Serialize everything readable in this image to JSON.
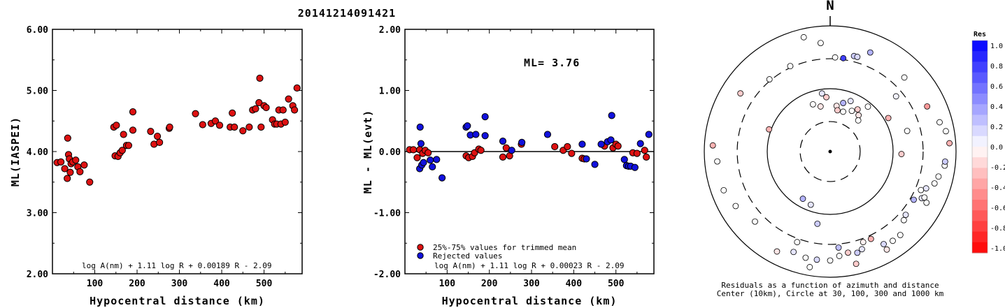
{
  "title": "20141214091421",
  "chart_data": [
    {
      "type": "scatter",
      "ylabel": "ML(IASPEI)",
      "xlabel": "Hypocentral distance (km)",
      "xlim": [
        0,
        590
      ],
      "ylim": [
        2.0,
        6.0
      ],
      "xticks": [
        100,
        200,
        300,
        400,
        500
      ],
      "yticks": [
        "2.00",
        "3.00",
        "4.00",
        "5.00",
        "6.00"
      ],
      "formula": "log A(nm) + 1.11 log R + 0.00189 R - 2.09",
      "series": [
        {
          "color": "#dd1111",
          "points": [
            [
              11,
              3.82
            ],
            [
              20,
              3.83
            ],
            [
              29,
              3.72
            ],
            [
              35,
              3.56
            ],
            [
              36,
              4.22
            ],
            [
              38,
              3.95
            ],
            [
              40,
              3.88
            ],
            [
              42,
              3.66
            ],
            [
              44,
              3.8
            ],
            [
              48,
              3.83
            ],
            [
              55,
              3.86
            ],
            [
              60,
              3.75
            ],
            [
              65,
              3.67
            ],
            [
              75,
              3.78
            ],
            [
              88,
              3.5
            ],
            [
              145,
              4.4
            ],
            [
              148,
              3.93
            ],
            [
              151,
              4.43
            ],
            [
              155,
              3.92
            ],
            [
              160,
              3.98
            ],
            [
              165,
              4.02
            ],
            [
              168,
              4.28
            ],
            [
              175,
              4.1
            ],
            [
              180,
              4.1
            ],
            [
              190,
              4.35
            ],
            [
              190,
              4.65
            ],
            [
              232,
              4.33
            ],
            [
              240,
              4.12
            ],
            [
              248,
              4.25
            ],
            [
              253,
              4.15
            ],
            [
              276,
              4.38
            ],
            [
              277,
              4.4
            ],
            [
              338,
              4.62
            ],
            [
              355,
              4.44
            ],
            [
              375,
              4.46
            ],
            [
              385,
              4.5
            ],
            [
              395,
              4.43
            ],
            [
              420,
              4.4
            ],
            [
              425,
              4.63
            ],
            [
              430,
              4.4
            ],
            [
              450,
              4.34
            ],
            [
              465,
              4.4
            ],
            [
              473,
              4.68
            ],
            [
              480,
              4.7
            ],
            [
              488,
              4.8
            ],
            [
              490,
              5.2
            ],
            [
              493,
              4.4
            ],
            [
              500,
              4.75
            ],
            [
              505,
              4.72
            ],
            [
              520,
              4.52
            ],
            [
              525,
              4.45
            ],
            [
              530,
              4.45
            ],
            [
              535,
              4.68
            ],
            [
              540,
              4.45
            ],
            [
              545,
              4.68
            ],
            [
              550,
              4.48
            ],
            [
              558,
              4.86
            ],
            [
              568,
              4.75
            ],
            [
              572,
              4.68
            ],
            [
              578,
              5.04
            ]
          ]
        }
      ]
    },
    {
      "type": "scatter",
      "ylabel": "ML - ML(evt)",
      "xlabel": "Hypocentral distance (km)",
      "xlim": [
        0,
        590
      ],
      "ylim": [
        -2.0,
        2.0
      ],
      "xticks": [
        100,
        200,
        300,
        400,
        500
      ],
      "yticks": [
        "-2.00",
        "-1.00",
        "0.00",
        "1.00",
        "2.00"
      ],
      "annotation": "ML= 3.76",
      "legend": [
        "25%-75% values for trimmed mean",
        "Rejected values"
      ],
      "formula": "log A(nm) + 1.11 log R + 0.00023 R - 2.09",
      "series": [
        {
          "name": "25%-75% values for trimmed mean",
          "color": "#dd1111",
          "points": [
            [
              11,
              0.03
            ],
            [
              20,
              0.03
            ],
            [
              29,
              -0.1
            ],
            [
              35,
              0.03
            ],
            [
              42,
              -0.03
            ],
            [
              48,
              0.02
            ],
            [
              55,
              -0.02
            ],
            [
              145,
              -0.07
            ],
            [
              151,
              -0.1
            ],
            [
              160,
              -0.08
            ],
            [
              165,
              -0.02
            ],
            [
              175,
              0.04
            ],
            [
              180,
              0.02
            ],
            [
              232,
              -0.09
            ],
            [
              240,
              0.06
            ],
            [
              248,
              -0.07
            ],
            [
              276,
              0.12
            ],
            [
              355,
              0.08
            ],
            [
              375,
              0.02
            ],
            [
              385,
              0.08
            ],
            [
              395,
              -0.03
            ],
            [
              420,
              -0.11
            ],
            [
              425,
              -0.12
            ],
            [
              473,
              0.09
            ],
            [
              493,
              0.06
            ],
            [
              500,
              0.12
            ],
            [
              505,
              0.09
            ],
            [
              540,
              -0.02
            ],
            [
              550,
              -0.03
            ],
            [
              568,
              0.02
            ],
            [
              572,
              -0.09
            ]
          ]
        },
        {
          "name": "Rejected values",
          "color": "#1111dd",
          "points": [
            [
              35,
              -0.28
            ],
            [
              36,
              0.4
            ],
            [
              38,
              0.13
            ],
            [
              40,
              -0.22
            ],
            [
              44,
              -0.18
            ],
            [
              60,
              -0.14
            ],
            [
              65,
              -0.25
            ],
            [
              75,
              -0.13
            ],
            [
              88,
              -0.43
            ],
            [
              145,
              0.4
            ],
            [
              148,
              0.42
            ],
            [
              155,
              0.27
            ],
            [
              168,
              0.28
            ],
            [
              190,
              0.57
            ],
            [
              190,
              0.26
            ],
            [
              232,
              0.17
            ],
            [
              253,
              0.02
            ],
            [
              277,
              0.15
            ],
            [
              338,
              0.28
            ],
            [
              420,
              0.12
            ],
            [
              430,
              -0.12
            ],
            [
              450,
              -0.21
            ],
            [
              465,
              0.12
            ],
            [
              480,
              0.16
            ],
            [
              488,
              0.19
            ],
            [
              490,
              0.59
            ],
            [
              520,
              -0.13
            ],
            [
              525,
              -0.23
            ],
            [
              530,
              -0.24
            ],
            [
              535,
              -0.24
            ],
            [
              545,
              -0.26
            ],
            [
              558,
              0.13
            ],
            [
              578,
              0.28
            ]
          ]
        }
      ]
    },
    {
      "type": "scatter",
      "north_label": "N",
      "caption_line1": "Residuals as a function of azimuth and distance",
      "caption_line2": "Center (10km), Circle at 30, 100, 300 and 1000 km",
      "colorbar_title": "Res",
      "colorbar_ticks": [
        "1.0",
        "0.8",
        "0.6",
        "0.4",
        "0.2",
        "0.0",
        "-0.2",
        "-0.4",
        "-0.6",
        "-0.8",
        "-1.0"
      ],
      "rings_km": [
        30,
        100,
        300,
        1000
      ],
      "stations": [
        [
          1.2,
          340,
          0.0
        ],
        [
          1.1,
          348,
          -0.1
        ],
        [
          1.3,
          356,
          -0.2
        ],
        [
          1.4,
          352,
          0.1
        ],
        [
          1.1,
          8,
          -0.1
        ],
        [
          1.0,
          10,
          -0.2
        ],
        [
          1.2,
          15,
          0.3
        ],
        [
          1.0,
          18,
          0.0
        ],
        [
          1.3,
          22,
          0.1
        ],
        [
          1.1,
          28,
          0.0
        ],
        [
          1.2,
          33,
          -0.2
        ],
        [
          1.1,
          38,
          -0.1
        ],
        [
          1.0,
          42,
          0.0
        ],
        [
          1.4,
          40,
          0.0
        ],
        [
          1.6,
          60,
          -0.3
        ],
        [
          1.9,
          75,
          0.0
        ],
        [
          1.7,
          92,
          -0.2
        ],
        [
          2.05,
          50,
          0.05
        ],
        [
          2.25,
          8,
          0.75
        ],
        [
          2.25,
          3,
          0.0
        ],
        [
          2.35,
          14,
          0.2
        ],
        [
          2.35,
          16,
          0.15
        ],
        [
          2.6,
          355,
          0.0
        ],
        [
          2.8,
          347,
          0.0
        ],
        [
          2.55,
          22,
          0.3
        ],
        [
          2.5,
          45,
          0.0
        ],
        [
          2.55,
          65,
          -0.4
        ],
        [
          2.7,
          75,
          0.0
        ],
        [
          2.8,
          80,
          0.0
        ],
        [
          2.85,
          86,
          -0.3
        ],
        [
          2.3,
          155,
          -0.3
        ],
        [
          2.5,
          165,
          0.2
        ],
        [
          2.45,
          170,
          -0.2
        ],
        [
          2.5,
          175,
          0.0
        ],
        [
          2.6,
          180,
          0.0
        ],
        [
          2.7,
          150,
          -0.1
        ],
        [
          2.4,
          133,
          0.0
        ],
        [
          2.3,
          120,
          0.3
        ],
        [
          2.35,
          113,
          0.0
        ],
        [
          2.45,
          117,
          0.1
        ],
        [
          2.5,
          116,
          0.0
        ],
        [
          2.45,
          111,
          0.1
        ],
        [
          2.6,
          107,
          0.0
        ],
        [
          2.65,
          103,
          0.0
        ],
        [
          2.75,
          97,
          0.0
        ],
        [
          2.75,
          95,
          0.2
        ],
        [
          2.6,
          145,
          0.0
        ],
        [
          2.55,
          150,
          0.15
        ],
        [
          2.3,
          175,
          0.25
        ],
        [
          2.6,
          140,
          0.0
        ],
        [
          2.3,
          200,
          0.0
        ],
        [
          2.55,
          200,
          0.1
        ],
        [
          2.8,
          190,
          0.0
        ],
        [
          2.75,
          167,
          -0.2
        ],
        [
          2.6,
          187,
          0.15
        ],
        [
          2.6,
          193,
          0.0
        ],
        [
          2.7,
          208,
          -0.1
        ],
        [
          2.45,
          227,
          0.0
        ],
        [
          2.6,
          240,
          0.0
        ],
        [
          2.7,
          250,
          0.0
        ],
        [
          1.55,
          290,
          -0.3
        ],
        [
          2.8,
          273,
          -0.3
        ],
        [
          2.55,
          303,
          -0.2
        ],
        [
          2.25,
          320,
          0.0
        ],
        [
          2.25,
          335,
          0.0
        ],
        [
          2.7,
          265,
          0.0
        ],
        [
          1.35,
          200,
          0.1
        ],
        [
          2.35,
          130,
          0.1
        ],
        [
          2.45,
          162,
          0.1
        ],
        [
          1.3,
          210,
          0.3
        ],
        [
          1.75,
          190,
          0.2
        ],
        [
          2.3,
          160,
          -0.05
        ],
        [
          2.6,
          118,
          0.0
        ]
      ]
    }
  ]
}
